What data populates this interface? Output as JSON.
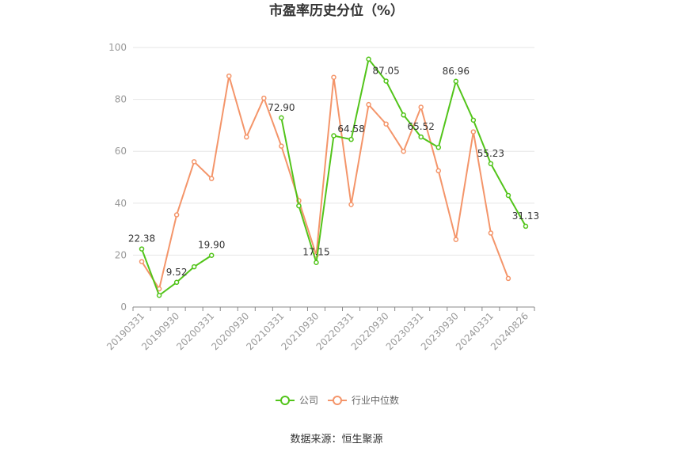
{
  "chart_data": {
    "type": "line",
    "title": "市盈率历史分位（%）",
    "source": "数据来源：恒生聚源",
    "ylim": [
      0,
      100
    ],
    "yticks": [
      0,
      20,
      40,
      60,
      80,
      100
    ],
    "grid": true,
    "legend_position": "bottom",
    "x": [
      "20190331",
      "20190630",
      "20190930",
      "20191231",
      "20200331",
      "20200630",
      "20200930",
      "20201231",
      "20210331",
      "20210630",
      "20210930",
      "20211231",
      "20220331",
      "20220630",
      "20220930",
      "20221231",
      "20230331",
      "20230630",
      "20230930",
      "20231231",
      "20240331",
      "20240630",
      "20240826"
    ],
    "x_tick_labels": [
      "20190331",
      "20190930",
      "20200331",
      "20200930",
      "20210331",
      "20210930",
      "20220331",
      "20220930",
      "20230331",
      "20230930",
      "20240331",
      "20240826"
    ],
    "series": [
      {
        "name": "公司",
        "color": "#52c41a",
        "values": [
          22.38,
          4.5,
          9.52,
          15.5,
          19.9,
          null,
          null,
          null,
          72.9,
          39.0,
          17.15,
          66.0,
          64.58,
          95.5,
          87.05,
          74.0,
          65.52,
          61.5,
          86.96,
          72.0,
          55.23,
          43.0,
          31.13
        ],
        "labels": {
          "0": "22.38",
          "2": "9.52",
          "4": "19.90",
          "8": "72.90",
          "10": "17.15",
          "12": "64.58",
          "14": "87.05",
          "16": "65.52",
          "18": "86.96",
          "20": "55.23",
          "22": "31.13"
        }
      },
      {
        "name": "行业中位数",
        "color": "#f4956a",
        "values": [
          17.5,
          7.0,
          35.5,
          56.0,
          49.5,
          89.0,
          65.5,
          80.5,
          62.0,
          41.0,
          20.0,
          88.5,
          39.5,
          78.0,
          70.5,
          60.0,
          77.0,
          52.5,
          26.0,
          67.5,
          28.5,
          11.0,
          null
        ]
      }
    ]
  }
}
